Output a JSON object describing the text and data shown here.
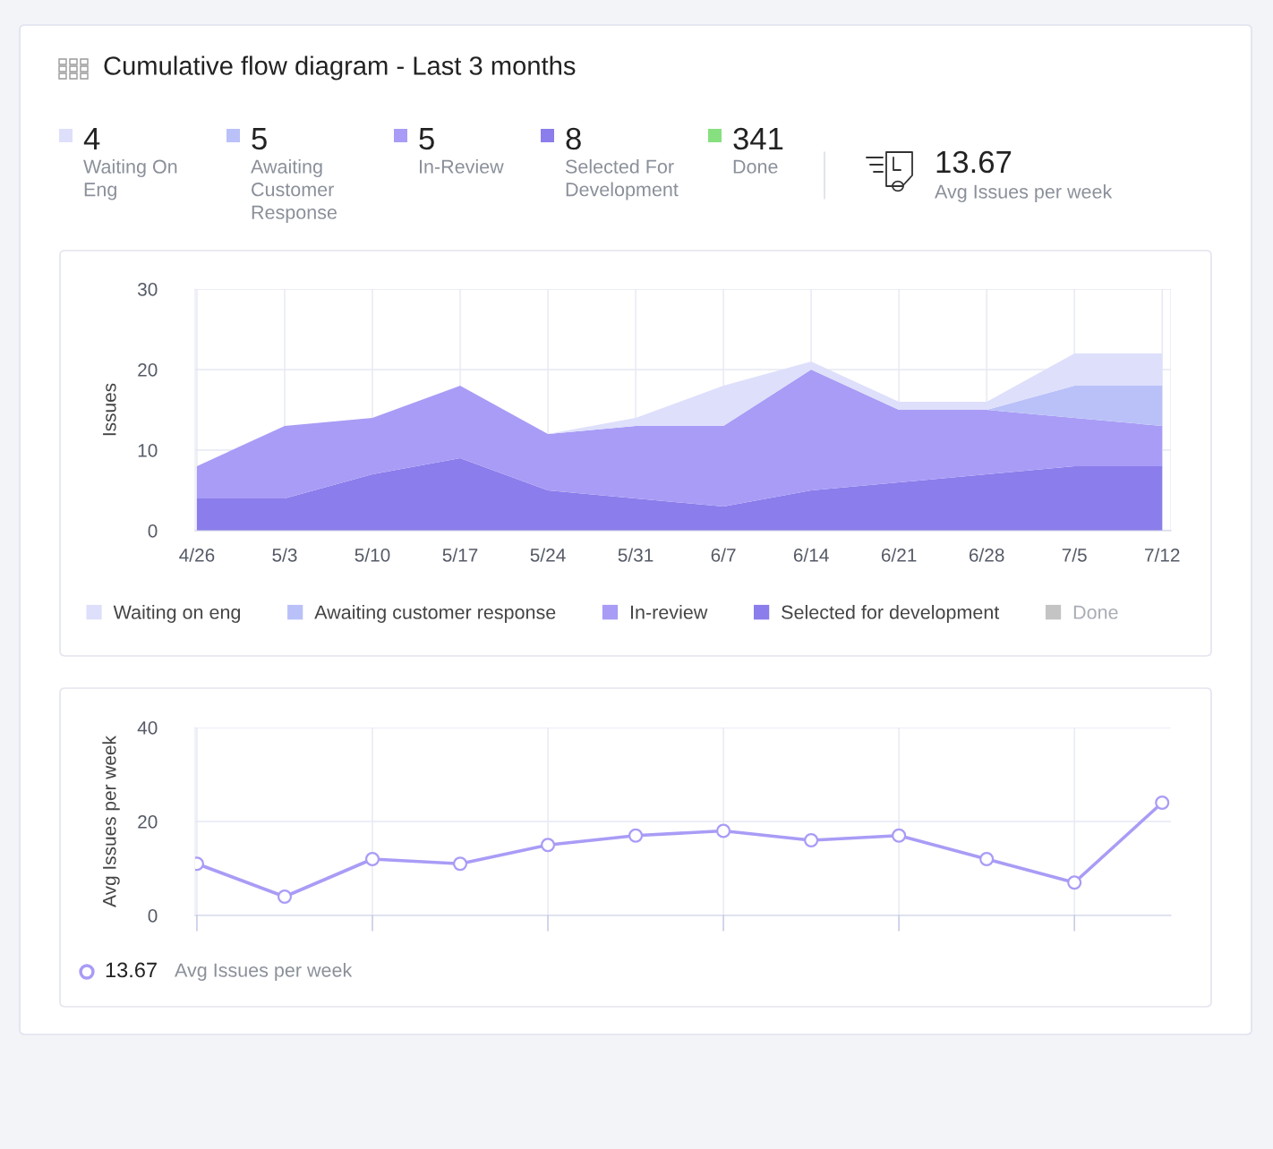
{
  "chart_data": [
    {
      "type": "other",
      "title": "Cumulative flow diagram - Last 3 months",
      "data_labels": true,
      "categories": [
        "Waiting On Eng",
        "Awaiting Customer Response",
        "In-Review",
        "Selected For Development",
        "Done",
        "Avg Issues per week"
      ],
      "values": [
        4,
        5,
        5,
        8,
        341,
        13.67
      ],
      "colors": [
        "#dedffb",
        "#bac1f8",
        "#a89cf6",
        "#8b7deb",
        "#86e07f",
        null
      ]
    },
    {
      "type": "area",
      "stacked": true,
      "ylabel": "Issues",
      "ylim": [
        0,
        30
      ],
      "yticks": [
        0,
        10,
        20,
        30
      ],
      "grid": true,
      "legend": "bottom",
      "categories": [
        "4/26",
        "5/3",
        "5/10",
        "5/17",
        "5/24",
        "5/31",
        "6/7",
        "6/14",
        "6/21",
        "6/28",
        "7/5",
        "7/12"
      ],
      "series": [
        {
          "name": "Selected for development",
          "color": "#8b7deb",
          "values": [
            4,
            4,
            7,
            9,
            5,
            4,
            3,
            5,
            6,
            7,
            8,
            8
          ]
        },
        {
          "name": "In-review",
          "color": "#a89cf6",
          "values": [
            4,
            9,
            7,
            9,
            7,
            9,
            10,
            15,
            9,
            8,
            6,
            5
          ]
        },
        {
          "name": "Awaiting customer response",
          "color": "#bac1f8",
          "values": [
            0,
            0,
            0,
            0,
            0,
            0,
            0,
            0,
            0,
            0,
            4,
            5
          ]
        },
        {
          "name": "Waiting on eng",
          "color": "#dedffb",
          "values": [
            0,
            0,
            0,
            0,
            0,
            1,
            5,
            1,
            1,
            1,
            4,
            4
          ]
        },
        {
          "name": "Done",
          "color": "#c4c4c4",
          "values": [
            null,
            null,
            null,
            null,
            null,
            null,
            null,
            null,
            null,
            null,
            null,
            null
          ]
        }
      ]
    },
    {
      "type": "line",
      "ylabel": "Avg Issues per week",
      "ylim": [
        0,
        40
      ],
      "yticks": [
        0,
        20,
        40
      ],
      "grid": true,
      "legend": "bottom left",
      "marker": "circle",
      "categories": [
        null,
        null,
        null,
        null,
        null,
        null,
        null,
        null,
        null,
        null,
        null,
        null
      ],
      "annotations": [
        "13.67"
      ],
      "series": [
        {
          "name": "Avg Issues per week",
          "color": "#a89cf6",
          "values": [
            11,
            4,
            12,
            11,
            15,
            17,
            18,
            16,
            17,
            12,
            7,
            24
          ]
        }
      ]
    }
  ]
}
